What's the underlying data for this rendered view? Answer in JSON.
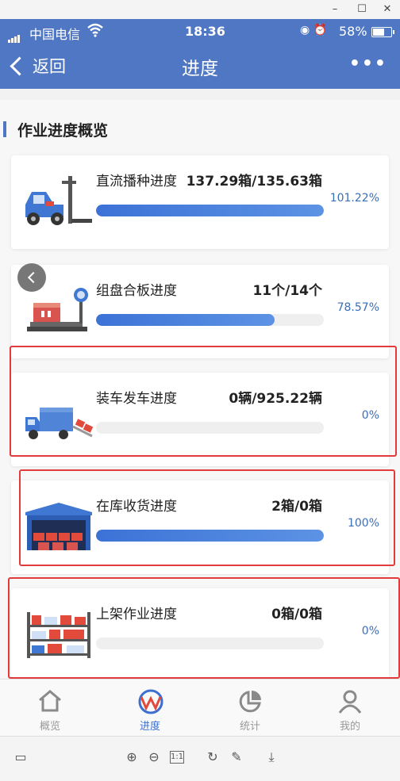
{
  "status": {
    "carrier": "中国电信",
    "time": "18:36",
    "battery": "58%",
    "battery_level": 0.58
  },
  "nav": {
    "back_label": "返回",
    "title": "进度",
    "more_label": "•••"
  },
  "section": {
    "title": "作业进度概览"
  },
  "cards": [
    {
      "label": "直流播种进度",
      "value": "137.29箱/135.63箱",
      "percent": "101.22%",
      "fill": 1.0,
      "icon": "forklift-icon"
    },
    {
      "label": "组盘合板进度",
      "value": "11个/14个",
      "percent": "78.57%",
      "fill": 0.7857,
      "icon": "pallet-scale-icon"
    },
    {
      "label": "装车发车进度",
      "value": "0辆/925.22辆",
      "percent": "0%",
      "fill": 0,
      "icon": "truck-loading-icon"
    },
    {
      "label": "在库收货进度",
      "value": "2箱/0箱",
      "percent": "100%",
      "fill": 1.0,
      "icon": "warehouse-icon"
    },
    {
      "label": "上架作业进度",
      "value": "0箱/0箱",
      "percent": "0%",
      "fill": 0,
      "icon": "shelf-icon"
    }
  ],
  "tabs": [
    {
      "label": "概览",
      "icon": "home-icon",
      "active": false
    },
    {
      "label": "进度",
      "icon": "progress-logo-icon",
      "active": true
    },
    {
      "label": "统计",
      "icon": "pie-chart-icon",
      "active": false
    },
    {
      "label": "我的",
      "icon": "user-icon",
      "active": false
    }
  ],
  "colors": {
    "primary": "#4f77c3",
    "accent_blue": "#3c72d6",
    "highlight_red": "#e23b3b"
  }
}
